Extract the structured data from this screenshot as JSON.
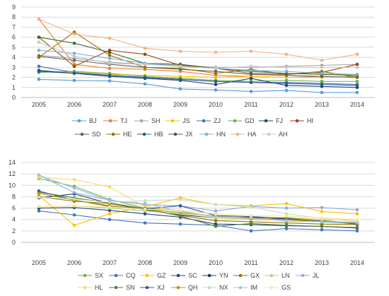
{
  "chart_data": [
    {
      "type": "line",
      "x": [
        2005,
        2006,
        2007,
        2008,
        2009,
        2010,
        2011,
        2012,
        2013,
        2014
      ],
      "ylim": [
        0,
        9
      ],
      "yticks": [
        0,
        1,
        2,
        3,
        4,
        5,
        6,
        7,
        8,
        9
      ],
      "grid": "horizontal",
      "legend": "bottom",
      "series": [
        {
          "name": "BJ",
          "color": "#5b9bd5",
          "values": [
            1.8,
            1.7,
            1.65,
            1.35,
            0.85,
            0.75,
            0.6,
            0.7,
            0.5,
            0.5
          ]
        },
        {
          "name": "TJ",
          "color": "#ed7d31",
          "values": [
            7.8,
            3.3,
            2.9,
            2.8,
            2.6,
            2.2,
            2.1,
            2.0,
            2.1,
            2.0
          ]
        },
        {
          "name": "SH",
          "color": "#a5a5a5",
          "values": [
            4.2,
            3.9,
            3.5,
            3.3,
            3.2,
            3.0,
            3.0,
            3.1,
            3.2,
            3.3
          ]
        },
        {
          "name": "JS",
          "color": "#ffc000",
          "values": [
            2.6,
            2.5,
            2.3,
            2.2,
            2.1,
            2.0,
            2.1,
            2.0,
            2.0,
            2.1
          ]
        },
        {
          "name": "ZJ",
          "color": "#4472c4",
          "values": [
            3.1,
            2.5,
            2.2,
            2.0,
            1.8,
            1.6,
            1.5,
            1.5,
            1.4,
            1.3
          ]
        },
        {
          "name": "GD",
          "color": "#70ad47",
          "values": [
            2.5,
            2.6,
            2.4,
            2.1,
            1.9,
            1.7,
            1.6,
            1.7,
            1.6,
            1.6
          ]
        },
        {
          "name": "FJ",
          "color": "#264478",
          "values": [
            2.7,
            2.4,
            2.1,
            1.9,
            1.7,
            1.3,
            1.9,
            1.2,
            1.1,
            1.0
          ]
        },
        {
          "name": "HI",
          "color": "#9e480e",
          "values": [
            6.0,
            3.1,
            4.7,
            4.3,
            3.2,
            2.9,
            2.4,
            2.3,
            2.5,
            3.3
          ]
        },
        {
          "name": "SD",
          "color": "#636363",
          "values": [
            4.1,
            3.7,
            3.3,
            3.0,
            2.8,
            2.6,
            2.3,
            2.2,
            2.1,
            2.0
          ]
        },
        {
          "name": "HE",
          "color": "#997300",
          "values": [
            4.0,
            6.5,
            4.2,
            3.0,
            2.9,
            2.4,
            2.8,
            2.3,
            2.6,
            2.0
          ]
        },
        {
          "name": "HB",
          "color": "#255e91",
          "values": [
            2.6,
            2.4,
            2.2,
            2.0,
            1.8,
            1.6,
            1.5,
            1.4,
            1.3,
            1.2
          ]
        },
        {
          "name": "JX",
          "color": "#43682b",
          "values": [
            6.0,
            5.4,
            4.5,
            3.4,
            3.3,
            2.9,
            2.6,
            2.4,
            2.3,
            2.2
          ]
        },
        {
          "name": "HN",
          "color": "#7cafdd",
          "values": [
            4.7,
            4.4,
            3.9,
            3.4,
            3.1,
            2.9,
            2.7,
            2.6,
            2.4,
            2.3
          ]
        },
        {
          "name": "HA",
          "color": "#f4b183",
          "values": [
            7.8,
            6.3,
            5.9,
            4.9,
            4.6,
            4.5,
            4.6,
            4.3,
            3.7,
            4.3
          ]
        },
        {
          "name": "AH",
          "color": "#c9c9c9",
          "values": [
            5.5,
            4.1,
            3.4,
            3.3,
            3.1,
            2.9,
            3.1,
            3.0,
            3.0,
            3.0
          ]
        }
      ]
    },
    {
      "type": "line",
      "x": [
        2005,
        2006,
        2007,
        2008,
        2009,
        2010,
        2011,
        2012,
        2013,
        2014
      ],
      "ylim": [
        0,
        14
      ],
      "yticks": [
        0,
        2,
        4,
        6,
        8,
        10,
        12,
        14
      ],
      "grid": "horizontal",
      "legend": "bottom",
      "series": [
        {
          "name": "SX",
          "color": "#70ad47",
          "values": [
            11.2,
            9.8,
            7.5,
            6.0,
            5.5,
            4.4,
            4.1,
            4.3,
            3.9,
            3.2
          ]
        },
        {
          "name": "CQ",
          "color": "#4472c4",
          "values": [
            5.5,
            4.8,
            4.0,
            3.4,
            3.2,
            3.0,
            2.0,
            2.4,
            2.2,
            2.0
          ]
        },
        {
          "name": "GZ",
          "color": "#ffc000",
          "values": [
            8.2,
            3.0,
            5.0,
            6.2,
            7.8,
            6.6,
            6.4,
            6.8,
            5.4,
            5.0
          ]
        },
        {
          "name": "SC",
          "color": "#264478",
          "values": [
            6.0,
            6.1,
            5.6,
            5.0,
            4.4,
            3.2,
            3.1,
            2.9,
            2.8,
            2.5
          ]
        },
        {
          "name": "YN",
          "color": "#203864",
          "values": [
            7.8,
            8.5,
            6.8,
            5.7,
            4.8,
            4.3,
            4.4,
            4.1,
            3.7,
            3.2
          ]
        },
        {
          "name": "GX",
          "color": "#997300",
          "values": [
            8.0,
            7.2,
            6.8,
            5.8,
            4.7,
            3.8,
            3.6,
            3.4,
            3.2,
            3.1
          ]
        },
        {
          "name": "LN",
          "color": "#a9d18e",
          "values": [
            6.3,
            6.4,
            6.0,
            5.5,
            5.0,
            4.3,
            4.0,
            3.9,
            3.6,
            3.3
          ]
        },
        {
          "name": "JL",
          "color": "#8faadc",
          "values": [
            11.8,
            8.7,
            7.4,
            6.6,
            6.4,
            5.5,
            6.3,
            6.0,
            6.1,
            5.7
          ]
        },
        {
          "name": "HL",
          "color": "#ffd966",
          "values": [
            11.4,
            11.0,
            9.7,
            6.2,
            5.6,
            4.4,
            4.1,
            4.4,
            4.0,
            3.9
          ]
        },
        {
          "name": "SN",
          "color": "#548235",
          "values": [
            8.8,
            7.8,
            6.9,
            5.9,
            4.6,
            2.8,
            3.3,
            3.0,
            2.8,
            2.6
          ]
        },
        {
          "name": "XJ",
          "color": "#2f5597",
          "values": [
            9.0,
            7.4,
            6.3,
            5.9,
            6.4,
            4.7,
            4.5,
            4.2,
            3.6,
            3.3
          ]
        },
        {
          "name": "QH",
          "color": "#bf9000",
          "values": [
            8.6,
            7.4,
            6.4,
            5.8,
            5.2,
            4.6,
            4.2,
            4.0,
            3.6,
            3.5
          ]
        },
        {
          "name": "NX",
          "color": "#c5e0b4",
          "values": [
            7.9,
            7.6,
            7.0,
            7.3,
            7.5,
            6.6,
            6.2,
            5.0,
            4.2,
            3.6
          ]
        },
        {
          "name": "IM",
          "color": "#9dc3e6",
          "values": [
            11.8,
            9.5,
            7.3,
            6.8,
            5.4,
            4.5,
            4.3,
            3.7,
            3.6,
            3.4
          ]
        },
        {
          "name": "GS",
          "color": "#ffe699",
          "values": [
            6.3,
            6.4,
            6.2,
            5.8,
            5.6,
            5.0,
            4.7,
            4.6,
            4.3,
            4.0
          ]
        }
      ]
    }
  ]
}
